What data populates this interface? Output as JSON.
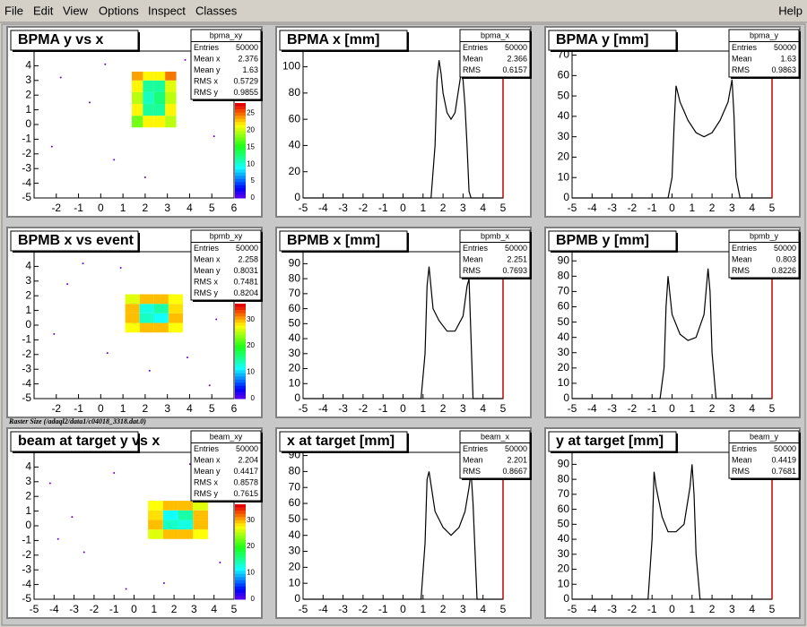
{
  "menu": {
    "items": [
      "File",
      "Edit",
      "View",
      "Options",
      "Inspect",
      "Classes"
    ],
    "help": "Help"
  },
  "caption": "Raster Size (/adaql2/data1/c04018_3318.dat.0)",
  "chart_data": [
    {
      "type": "heatmap",
      "title": "BPMA y vs x",
      "stats": {
        "name": "bpma_xy",
        "labels": [
          "Entries",
          "Mean x",
          "Mean y",
          "RMS x",
          "RMS y"
        ],
        "values": [
          50000,
          2.376,
          1.63,
          0.5729,
          0.9855
        ]
      },
      "xlim": [
        -3,
        6
      ],
      "xticks": [
        -2,
        -1,
        0,
        1,
        2,
        3,
        4,
        5,
        6
      ],
      "ylim": [
        -5,
        5
      ],
      "yticks": [
        -5,
        -4,
        -3,
        -2,
        -1,
        0,
        1,
        2,
        3,
        4
      ],
      "xedges": [
        1.4,
        1.9,
        2.4,
        2.9,
        3.4
      ],
      "yedges": [
        -0.2,
        0.6,
        1.4,
        2.2,
        3.0,
        3.6
      ],
      "counts": [
        [
          18,
          22,
          22,
          20
        ],
        [
          22,
          12,
          12,
          22
        ],
        [
          20,
          11,
          13,
          20
        ],
        [
          22,
          12,
          12,
          21
        ],
        [
          24,
          22,
          22,
          25
        ]
      ],
      "zlim": [
        0,
        28
      ],
      "zticks": [
        0,
        5,
        10,
        15,
        20,
        25
      ],
      "points": {
        "x": [
          -1.8,
          -0.5,
          0.6,
          4.2,
          5.1,
          2.0,
          3.8,
          0.2,
          -2.2,
          4.8
        ],
        "y": [
          3.2,
          1.5,
          -2.4,
          2.6,
          -0.8,
          -3.6,
          4.4,
          4.1,
          -1.5,
          3.7
        ]
      }
    },
    {
      "type": "line",
      "title": "BPMA x [mm]",
      "color": "#000000",
      "stats": {
        "name": "bpma_x",
        "labels": [
          "Entries",
          "Mean",
          "RMS"
        ],
        "values": [
          50000,
          2.366,
          0.6157
        ]
      },
      "xlim": [
        -5,
        5
      ],
      "xticks": [
        -5,
        -4,
        -3,
        -2,
        -1,
        0,
        1,
        2,
        3,
        4,
        5
      ],
      "ylim": [
        0,
        112
      ],
      "yticks": [
        0,
        20,
        40,
        60,
        80,
        100
      ],
      "x": [
        -5,
        1.4,
        1.6,
        1.7,
        1.8,
        1.9,
        2.0,
        2.2,
        2.4,
        2.6,
        2.8,
        2.9,
        3.0,
        3.1,
        3.2,
        3.3,
        3.4,
        5
      ],
      "values": [
        0,
        0,
        40,
        90,
        105,
        95,
        80,
        65,
        60,
        65,
        85,
        95,
        90,
        70,
        40,
        5,
        0,
        0
      ]
    },
    {
      "type": "line",
      "title": "BPMA y [mm]",
      "color": "#000000",
      "stats": {
        "name": "bpma_y",
        "labels": [
          "Entries",
          "Mean",
          "RMS"
        ],
        "values": [
          50000,
          1.63,
          0.9863
        ]
      },
      "xlim": [
        -5,
        5
      ],
      "xticks": [
        -5,
        -4,
        -3,
        -2,
        -1,
        0,
        1,
        2,
        3,
        4,
        5
      ],
      "ylim": [
        0,
        72
      ],
      "yticks": [
        0,
        10,
        20,
        30,
        40,
        50,
        60,
        70
      ],
      "x": [
        -5,
        -0.2,
        0,
        0.1,
        0.2,
        0.4,
        0.8,
        1.2,
        1.6,
        2.0,
        2.4,
        2.8,
        3.0,
        3.1,
        3.2,
        3.4,
        5
      ],
      "values": [
        0,
        0,
        10,
        35,
        55,
        47,
        38,
        32,
        30,
        32,
        38,
        47,
        58,
        40,
        10,
        0,
        0
      ]
    },
    {
      "type": "heatmap",
      "title": "BPMB x vs event",
      "stats": {
        "name": "bpmb_xy",
        "labels": [
          "Entries",
          "Mean x",
          "Mean y",
          "RMS x",
          "RMS y"
        ],
        "values": [
          50000,
          2.258,
          0.8031,
          0.7481,
          0.8204
        ]
      },
      "xlim": [
        -3,
        6
      ],
      "xticks": [
        -2,
        -1,
        0,
        1,
        2,
        3,
        4,
        5,
        6
      ],
      "ylim": [
        -5,
        5
      ],
      "yticks": [
        -5,
        -4,
        -3,
        -2,
        -1,
        0,
        1,
        2,
        3,
        4
      ],
      "xedges": [
        1.1,
        1.75,
        2.4,
        3.05,
        3.7
      ],
      "yedges": [
        -0.5,
        0.15,
        0.8,
        1.45,
        2.1
      ],
      "counts": [
        [
          28,
          30,
          30,
          28
        ],
        [
          30,
          14,
          12,
          30
        ],
        [
          30,
          13,
          15,
          29
        ],
        [
          27,
          30,
          30,
          28
        ]
      ],
      "zlim": [
        0,
        36
      ],
      "zticks": [
        0,
        10,
        20,
        30
      ],
      "points": {
        "x": [
          -1.5,
          0.3,
          4.5,
          5.2,
          2.2,
          -0.8,
          3.9,
          0.9,
          -2.1,
          4.9
        ],
        "y": [
          2.8,
          -1.9,
          3.5,
          0.4,
          -3.1,
          4.2,
          -2.2,
          3.9,
          -0.6,
          -4.1
        ]
      }
    },
    {
      "type": "line",
      "title": "BPMB x [mm]",
      "color": "#000000",
      "stats": {
        "name": "bpmb_x",
        "labels": [
          "Entries",
          "Mean",
          "RMS"
        ],
        "values": [
          50000,
          2.251,
          0.7693
        ]
      },
      "xlim": [
        -5,
        5
      ],
      "xticks": [
        -5,
        -4,
        -3,
        -2,
        -1,
        0,
        1,
        2,
        3,
        4,
        5
      ],
      "ylim": [
        0,
        98
      ],
      "yticks": [
        0,
        10,
        20,
        30,
        40,
        50,
        60,
        70,
        80,
        90
      ],
      "x": [
        -5,
        0.9,
        1.1,
        1.2,
        1.3,
        1.5,
        1.8,
        2.2,
        2.6,
        3.0,
        3.2,
        3.3,
        3.4,
        3.5,
        5
      ],
      "values": [
        0,
        0,
        30,
        75,
        88,
        60,
        52,
        45,
        45,
        55,
        75,
        80,
        40,
        0,
        0
      ]
    },
    {
      "type": "line",
      "title": "BPMB y [mm]",
      "color": "#000000",
      "stats": {
        "name": "bpmb_y",
        "labels": [
          "Entries",
          "Mean",
          "RMS"
        ],
        "values": [
          50000,
          0.803,
          0.8226
        ]
      },
      "xlim": [
        -5,
        5
      ],
      "xticks": [
        -5,
        -4,
        -3,
        -2,
        -1,
        0,
        1,
        2,
        3,
        4,
        5
      ],
      "ylim": [
        0,
        96
      ],
      "yticks": [
        0,
        10,
        20,
        30,
        40,
        50,
        60,
        70,
        80,
        90
      ],
      "x": [
        -5,
        -0.6,
        -0.4,
        -0.3,
        -0.2,
        0,
        0.4,
        0.8,
        1.2,
        1.6,
        1.8,
        1.9,
        2.0,
        2.2,
        5
      ],
      "values": [
        0,
        0,
        20,
        60,
        80,
        55,
        42,
        38,
        40,
        55,
        85,
        70,
        30,
        0,
        0
      ]
    },
    {
      "type": "heatmap",
      "title": "beam at target y vs x",
      "stats": {
        "name": "beam_xy",
        "labels": [
          "Entries",
          "Mean x",
          "Mean y",
          "RMS x",
          "RMS y"
        ],
        "values": [
          50000,
          2.204,
          0.4417,
          0.8578,
          0.7615
        ]
      },
      "xlim": [
        -5,
        5
      ],
      "xticks": [
        -5,
        -4,
        -3,
        -2,
        -1,
        0,
        1,
        2,
        3,
        4,
        5
      ],
      "ylim": [
        -5,
        5
      ],
      "yticks": [
        -5,
        -4,
        -3,
        -2,
        -1,
        0,
        1,
        2,
        3,
        4
      ],
      "xedges": [
        0.7,
        1.45,
        2.2,
        2.95,
        3.7
      ],
      "yedges": [
        -0.9,
        -0.25,
        0.4,
        1.05,
        1.7
      ],
      "counts": [
        [
          27,
          30,
          30,
          28
        ],
        [
          30,
          14,
          13,
          30
        ],
        [
          29,
          12,
          15,
          30
        ],
        [
          28,
          30,
          30,
          27
        ]
      ],
      "zlim": [
        0,
        36
      ],
      "zticks": [
        0,
        10,
        20,
        30
      ],
      "points": {
        "x": [
          -4.2,
          -2.5,
          -1.0,
          4.3,
          -3.1,
          1.5,
          4.6,
          -0.4,
          -3.8,
          2.8
        ],
        "y": [
          2.9,
          -1.8,
          3.6,
          -2.5,
          0.6,
          -3.9,
          3.1,
          -4.3,
          -0.9,
          4.2
        ]
      }
    },
    {
      "type": "line",
      "title": "x at target [mm]",
      "color": "#000000",
      "stats": {
        "name": "beam_x",
        "labels": [
          "Entries",
          "Mean",
          "RMS"
        ],
        "values": [
          50000,
          2.201,
          0.8667
        ]
      },
      "xlim": [
        -5,
        5
      ],
      "xticks": [
        -5,
        -4,
        -3,
        -2,
        -1,
        0,
        1,
        2,
        3,
        4,
        5
      ],
      "ylim": [
        0,
        92
      ],
      "yticks": [
        0,
        10,
        20,
        30,
        40,
        50,
        60,
        70,
        80,
        90
      ],
      "x": [
        -5,
        0.9,
        1.1,
        1.2,
        1.3,
        1.6,
        2.0,
        2.4,
        2.8,
        3.1,
        3.3,
        3.4,
        3.5,
        3.7,
        5
      ],
      "values": [
        0,
        0,
        35,
        75,
        80,
        55,
        45,
        40,
        45,
        55,
        70,
        80,
        60,
        0,
        0
      ]
    },
    {
      "type": "line",
      "title": "y at target [mm]",
      "color": "#000000",
      "stats": {
        "name": "beam_y",
        "labels": [
          "Entries",
          "Mean",
          "RMS"
        ],
        "values": [
          50000,
          0.4419,
          0.7681
        ]
      },
      "xlim": [
        -5,
        5
      ],
      "xticks": [
        -5,
        -4,
        -3,
        -2,
        -1,
        0,
        1,
        2,
        3,
        4,
        5
      ],
      "ylim": [
        0,
        98
      ],
      "yticks": [
        0,
        10,
        20,
        30,
        40,
        50,
        60,
        70,
        80,
        90
      ],
      "x": [
        -5,
        -1.2,
        -1.0,
        -0.9,
        -0.8,
        -0.5,
        -0.2,
        0.2,
        0.6,
        0.9,
        1.0,
        1.1,
        1.2,
        1.4,
        5
      ],
      "values": [
        0,
        0,
        40,
        85,
        75,
        55,
        45,
        45,
        50,
        75,
        90,
        70,
        30,
        0,
        0
      ]
    }
  ]
}
